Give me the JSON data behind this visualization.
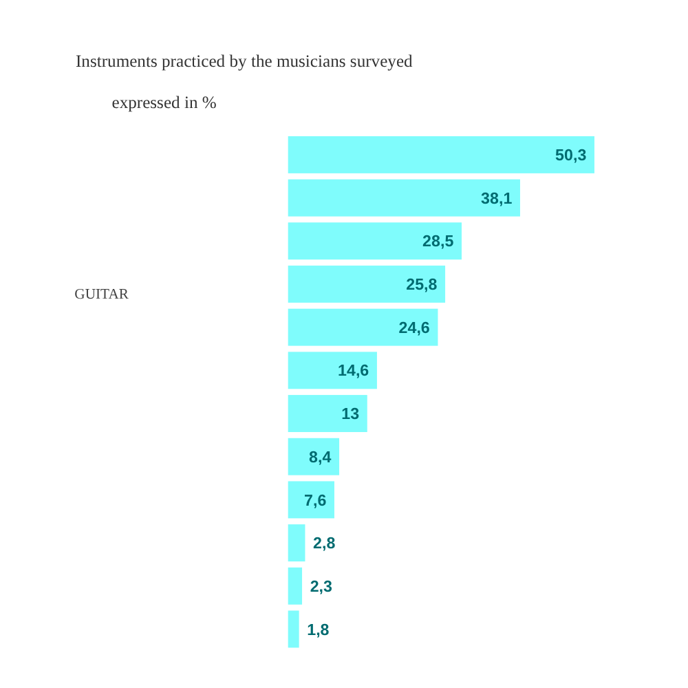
{
  "chart_data": {
    "type": "bar",
    "orientation": "horizontal",
    "title": "Instruments practiced by the musicians surveyed",
    "subtitle": "expressed in %",
    "annotations": [
      "GUITAR"
    ],
    "categories": [
      null,
      null,
      null,
      null,
      null,
      null,
      null,
      null,
      null,
      null,
      null,
      null
    ],
    "values": [
      50.3,
      38.1,
      28.5,
      25.8,
      24.6,
      14.6,
      13,
      8.4,
      7.6,
      2.8,
      2.3,
      1.8
    ],
    "value_labels": [
      "50,3",
      "38,1",
      "28,5",
      "25,8",
      "24,6",
      "14,6",
      "13",
      "8,4",
      "7,6",
      "2,8",
      "2,3",
      "1,8"
    ],
    "color": "#7ffcfc"
  }
}
